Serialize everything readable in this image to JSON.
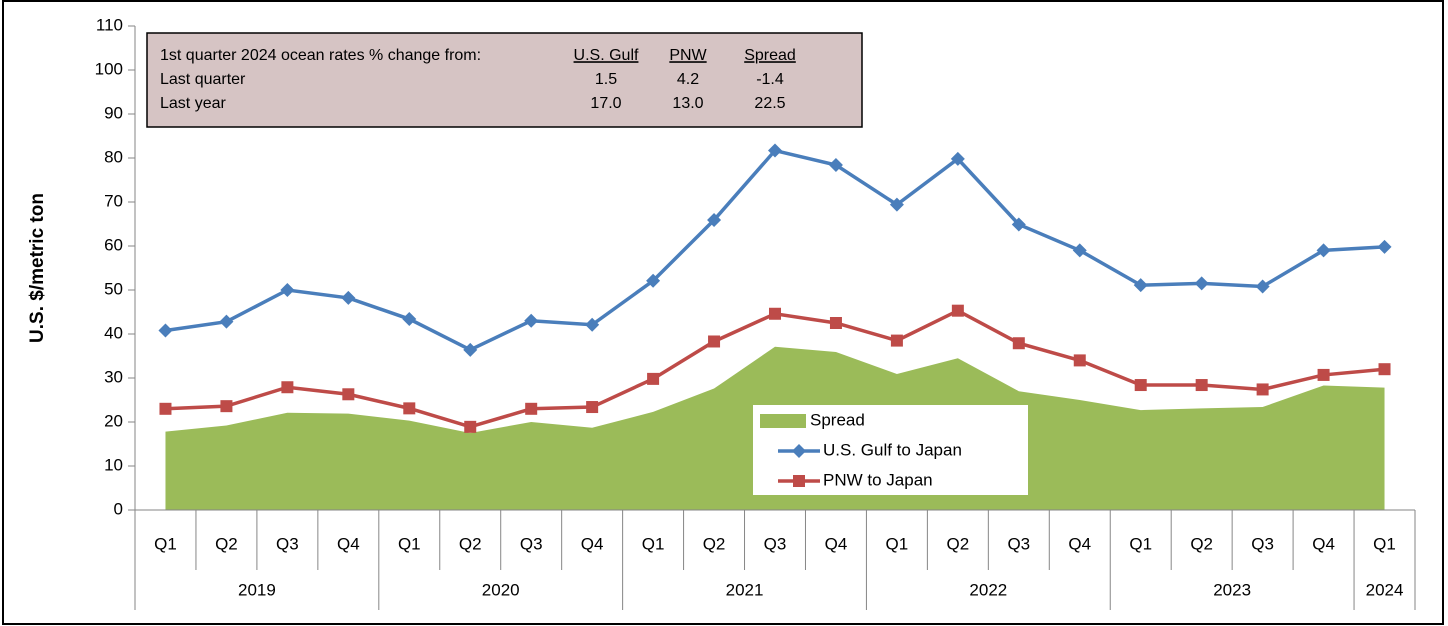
{
  "chart_data": {
    "type": "line",
    "y_label": "U.S. $/metric ton",
    "categories": [
      "Q1",
      "Q2",
      "Q3",
      "Q4",
      "Q1",
      "Q2",
      "Q3",
      "Q4",
      "Q1",
      "Q2",
      "Q3",
      "Q4",
      "Q1",
      "Q2",
      "Q3",
      "Q4",
      "Q1",
      "Q2",
      "Q3",
      "Q4",
      "Q1"
    ],
    "groups": [
      {
        "label": "2019",
        "count": 4
      },
      {
        "label": "2020",
        "count": 4
      },
      {
        "label": "2021",
        "count": 4
      },
      {
        "label": "2022",
        "count": 4
      },
      {
        "label": "2023",
        "count": 4
      },
      {
        "label": "2024",
        "count": 1
      }
    ],
    "series": [
      {
        "name": "Spread",
        "style": "area",
        "color": "#9bbb59",
        "values": [
          17.8,
          19.2,
          22.1,
          21.9,
          20.3,
          17.5,
          20.0,
          18.7,
          22.3,
          27.6,
          37.1,
          35.9,
          30.9,
          34.5,
          27.0,
          25.0,
          22.7,
          23.1,
          23.4,
          28.3,
          27.8
        ]
      },
      {
        "name": "U.S. Gulf to Japan",
        "style": "line",
        "marker": "diamond",
        "color": "#4a7ebb",
        "values": [
          40.8,
          42.8,
          50.0,
          48.2,
          43.4,
          36.4,
          43.0,
          42.1,
          52.1,
          65.9,
          81.7,
          78.4,
          69.4,
          79.8,
          64.9,
          59.0,
          51.1,
          51.5,
          50.8,
          59.0,
          59.8
        ]
      },
      {
        "name": "PNW to Japan",
        "style": "line",
        "marker": "square",
        "color": "#be4b48",
        "values": [
          23.0,
          23.6,
          27.9,
          26.3,
          23.1,
          18.9,
          23.0,
          23.4,
          29.8,
          38.3,
          44.6,
          42.5,
          38.5,
          45.3,
          37.9,
          34.0,
          28.4,
          28.4,
          27.4,
          30.7,
          32.0
        ]
      }
    ],
    "ylim": [
      0,
      110
    ],
    "yticks": [
      0,
      10,
      20,
      30,
      40,
      50,
      60,
      70,
      80,
      90,
      100,
      110
    ],
    "table": {
      "header": [
        "1st quarter 2024 ocean rates % change from:",
        "U.S. Gulf",
        "PNW",
        "Spread"
      ],
      "rows": [
        [
          "Last quarter",
          "1.5",
          "4.2",
          "-1.4"
        ],
        [
          "Last year",
          "17.0",
          "13.0",
          "22.5"
        ]
      ]
    }
  }
}
